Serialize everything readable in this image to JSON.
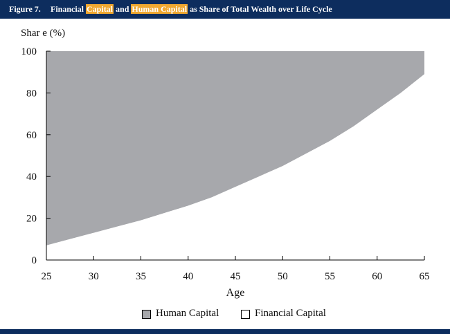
{
  "header": {
    "figure_label": "Figure 7.",
    "title_parts": [
      "Financial ",
      "Capital",
      " and ",
      "Human Capital",
      " as Share of Total Wealth over Life Cycle"
    ]
  },
  "colors": {
    "header_bg": "#0d2d5e",
    "highlight": "#f0a830",
    "human_capital": "#a7a8ac",
    "financial_capital": "#ffffff"
  },
  "chart_data": {
    "type": "area",
    "ylabel": "Shar e (%)",
    "xlabel": "Age",
    "xlim": [
      25,
      65
    ],
    "ylim": [
      0,
      100
    ],
    "x_ticks": [
      25,
      30,
      35,
      40,
      45,
      50,
      55,
      60,
      65
    ],
    "y_ticks": [
      0,
      20,
      40,
      60,
      80,
      100
    ],
    "grid": false,
    "legend_position": "bottom",
    "stacked": true,
    "x": [
      25,
      27.5,
      30,
      32.5,
      35,
      37.5,
      40,
      42.5,
      45,
      47.5,
      50,
      52.5,
      55,
      57.5,
      60,
      62.5,
      65
    ],
    "series": [
      {
        "name": "Financial Capital",
        "values": [
          7,
          10,
          13,
          16,
          19,
          22.5,
          26,
          30,
          35,
          40,
          45,
          51,
          57,
          64,
          72,
          80,
          89
        ]
      },
      {
        "name": "Human Capital",
        "values": [
          93,
          90,
          87,
          84,
          81,
          77.5,
          74,
          70,
          65,
          60,
          55,
          49,
          43,
          36,
          28,
          20,
          11
        ]
      }
    ]
  }
}
